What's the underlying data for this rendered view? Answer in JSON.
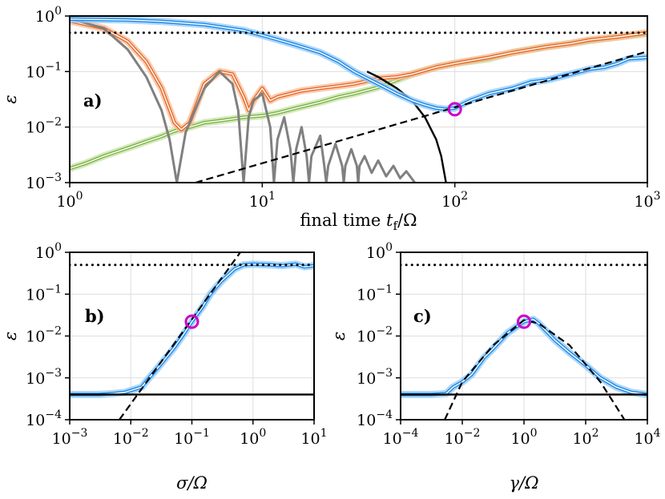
{
  "colors": {
    "blue": "#1E88E5",
    "blue_band": "#90CAF9",
    "orange": "#E8682A",
    "orange_band": "#F8B990",
    "green": "#7CB342",
    "green_band": "#C5E1A5",
    "gray": "#808080",
    "black": "#000000",
    "magenta": "#CC00CC",
    "grid": "#DDDDDD"
  },
  "chart_data": [
    {
      "id": "a",
      "type": "line",
      "panel_label": "a)",
      "xscale": "log",
      "yscale": "log",
      "xlim": [
        1,
        1000
      ],
      "ylim": [
        0.001,
        1
      ],
      "xticks": [
        {
          "v": 1,
          "exp": "0"
        },
        {
          "v": 10,
          "exp": "1"
        },
        {
          "v": 100,
          "exp": "2"
        },
        {
          "v": 1000,
          "exp": "3"
        }
      ],
      "yticks": [
        {
          "v": 0.001,
          "exp": "−3"
        },
        {
          "v": 0.01,
          "exp": "−2"
        },
        {
          "v": 0.1,
          "exp": "−1"
        },
        {
          "v": 1,
          "exp": "0"
        }
      ],
      "xlabel": "final time t_f/Ω",
      "xlabel_pre": "final time ",
      "xlabel_var": "t",
      "xlabel_sub": "f",
      "xlabel_post": "/Ω",
      "ylabel": "ε",
      "series": [
        {
          "name": "green-noisy",
          "style": "band",
          "color_key": "green",
          "points": [
            [
              1,
              0.0018
            ],
            [
              1.2,
              0.0022
            ],
            [
              1.5,
              0.003
            ],
            [
              2,
              0.0042
            ],
            [
              2.5,
              0.0055
            ],
            [
              3,
              0.0068
            ],
            [
              3.5,
              0.0085
            ],
            [
              4,
              0.0095
            ],
            [
              5,
              0.012
            ],
            [
              6,
              0.013
            ],
            [
              7,
              0.014
            ],
            [
              8,
              0.015
            ],
            [
              10,
              0.016
            ],
            [
              12,
              0.018
            ],
            [
              15,
              0.022
            ],
            [
              20,
              0.028
            ],
            [
              25,
              0.035
            ],
            [
              30,
              0.04
            ],
            [
              40,
              0.052
            ],
            [
              50,
              0.07
            ],
            [
              60,
              0.09
            ],
            [
              80,
              0.12
            ],
            [
              100,
              0.14
            ],
            [
              150,
              0.17
            ],
            [
              200,
              0.22
            ],
            [
              300,
              0.28
            ],
            [
              400,
              0.32
            ],
            [
              500,
              0.36
            ],
            [
              700,
              0.42
            ],
            [
              1000,
              0.48
            ]
          ]
        },
        {
          "name": "orange",
          "style": "band",
          "color_key": "orange",
          "points": [
            [
              1,
              0.82
            ],
            [
              1.5,
              0.6
            ],
            [
              2,
              0.35
            ],
            [
              2.5,
              0.15
            ],
            [
              3,
              0.05
            ],
            [
              3.5,
              0.012
            ],
            [
              3.8,
              0.009
            ],
            [
              4.2,
              0.012
            ],
            [
              5,
              0.06
            ],
            [
              6,
              0.1
            ],
            [
              7,
              0.09
            ],
            [
              8,
              0.035
            ],
            [
              8.5,
              0.02
            ],
            [
              9,
              0.03
            ],
            [
              10,
              0.05
            ],
            [
              11,
              0.03
            ],
            [
              12,
              0.035
            ],
            [
              14,
              0.04
            ],
            [
              16,
              0.045
            ],
            [
              20,
              0.05
            ],
            [
              25,
              0.055
            ],
            [
              30,
              0.06
            ],
            [
              40,
              0.075
            ],
            [
              50,
              0.08
            ],
            [
              60,
              0.09
            ],
            [
              80,
              0.12
            ],
            [
              100,
              0.14
            ],
            [
              150,
              0.18
            ],
            [
              200,
              0.22
            ],
            [
              300,
              0.28
            ],
            [
              400,
              0.32
            ],
            [
              500,
              0.37
            ],
            [
              700,
              0.42
            ],
            [
              1000,
              0.5
            ]
          ]
        },
        {
          "name": "gray-oscillation",
          "style": "line",
          "color_key": "gray",
          "points": [
            [
              1,
              0.9
            ],
            [
              1.5,
              0.6
            ],
            [
              2,
              0.25
            ],
            [
              2.5,
              0.08
            ],
            [
              3,
              0.02
            ],
            [
              3.3,
              0.006
            ],
            [
              3.6,
              0.001
            ],
            [
              4,
              0.008
            ],
            [
              5,
              0.05
            ],
            [
              6,
              0.1
            ],
            [
              7,
              0.06
            ],
            [
              7.5,
              0.02
            ],
            [
              8,
              0.001
            ],
            [
              8.5,
              0.015
            ],
            [
              9,
              0.03
            ],
            [
              10,
              0.04
            ],
            [
              11,
              0.01
            ],
            [
              11.5,
              0.001
            ],
            [
              12,
              0.006
            ],
            [
              13,
              0.015
            ],
            [
              14,
              0.004
            ],
            [
              14.5,
              0.001
            ],
            [
              15,
              0.004
            ],
            [
              16,
              0.01
            ],
            [
              17,
              0.003
            ],
            [
              17.5,
              0.001
            ],
            [
              18,
              0.003
            ],
            [
              20,
              0.007
            ],
            [
              21,
              0.002
            ],
            [
              21.5,
              0.001
            ],
            [
              22,
              0.002
            ],
            [
              24,
              0.005
            ],
            [
              26,
              0.002
            ],
            [
              26.5,
              0.001
            ],
            [
              27,
              0.002
            ],
            [
              29,
              0.004
            ],
            [
              31,
              0.002
            ],
            [
              31.5,
              0.001
            ],
            [
              32,
              0.002
            ],
            [
              34,
              0.003
            ],
            [
              37,
              0.0015
            ],
            [
              40,
              0.0025
            ],
            [
              44,
              0.0013
            ],
            [
              48,
              0.002
            ],
            [
              52,
              0.0012
            ],
            [
              56,
              0.0016
            ],
            [
              62,
              0.001
            ]
          ]
        },
        {
          "name": "black-decay",
          "style": "line",
          "color_key": "black",
          "points": [
            [
              35,
              0.1
            ],
            [
              40,
              0.08
            ],
            [
              50,
              0.05
            ],
            [
              60,
              0.03
            ],
            [
              70,
              0.015
            ],
            [
              80,
              0.006
            ],
            [
              85,
              0.003
            ],
            [
              90,
              0.001
            ]
          ]
        },
        {
          "name": "blue",
          "style": "band",
          "color_key": "blue",
          "points": [
            [
              1,
              0.88
            ],
            [
              2,
              0.85
            ],
            [
              3,
              0.8
            ],
            [
              5,
              0.7
            ],
            [
              8,
              0.55
            ],
            [
              10,
              0.45
            ],
            [
              15,
              0.3
            ],
            [
              20,
              0.22
            ],
            [
              25,
              0.15
            ],
            [
              30,
              0.1
            ],
            [
              40,
              0.06
            ],
            [
              50,
              0.04
            ],
            [
              60,
              0.03
            ],
            [
              70,
              0.025
            ],
            [
              80,
              0.022
            ],
            [
              90,
              0.021
            ],
            [
              100,
              0.022
            ],
            [
              120,
              0.03
            ],
            [
              150,
              0.04
            ],
            [
              200,
              0.05
            ],
            [
              250,
              0.065
            ],
            [
              300,
              0.07
            ],
            [
              400,
              0.09
            ],
            [
              500,
              0.11
            ],
            [
              600,
              0.12
            ],
            [
              700,
              0.14
            ],
            [
              800,
              0.17
            ],
            [
              1000,
              0.18
            ]
          ]
        },
        {
          "name": "dashed-fit",
          "style": "dashed",
          "color_key": "black",
          "points": [
            [
              4.5,
              0.001
            ],
            [
              1000,
              0.23
            ]
          ]
        },
        {
          "name": "dotted-level",
          "style": "dotted",
          "color_key": "black",
          "points": [
            [
              1,
              0.5
            ],
            [
              1000,
              0.5
            ]
          ]
        }
      ],
      "marker": {
        "x": 100,
        "y": 0.021,
        "color_key": "magenta"
      }
    },
    {
      "id": "b",
      "type": "line",
      "panel_label": "b)",
      "xscale": "log",
      "yscale": "log",
      "xlim": [
        0.001,
        10
      ],
      "ylim": [
        0.0001,
        1
      ],
      "xticks": [
        {
          "v": 0.001,
          "exp": "−3"
        },
        {
          "v": 0.01,
          "exp": "−2"
        },
        {
          "v": 0.1,
          "exp": "−1"
        },
        {
          "v": 1,
          "exp": "0"
        },
        {
          "v": 10,
          "exp": "1"
        }
      ],
      "yticks": [
        {
          "v": 0.0001,
          "exp": "−4"
        },
        {
          "v": 0.001,
          "exp": "−3"
        },
        {
          "v": 0.01,
          "exp": "−2"
        },
        {
          "v": 0.1,
          "exp": "−1"
        },
        {
          "v": 1,
          "exp": "0"
        }
      ],
      "xlabel": "σ/Ω",
      "ylabel": "ε",
      "series": [
        {
          "name": "blue",
          "style": "band",
          "color_key": "blue",
          "points": [
            [
              0.001,
              0.0004
            ],
            [
              0.003,
              0.0004
            ],
            [
              0.005,
              0.00042
            ],
            [
              0.008,
              0.00045
            ],
            [
              0.01,
              0.0005
            ],
            [
              0.015,
              0.0006
            ],
            [
              0.02,
              0.001
            ],
            [
              0.03,
              0.002
            ],
            [
              0.05,
              0.005
            ],
            [
              0.07,
              0.01
            ],
            [
              0.1,
              0.022
            ],
            [
              0.15,
              0.05
            ],
            [
              0.2,
              0.1
            ],
            [
              0.3,
              0.2
            ],
            [
              0.5,
              0.4
            ],
            [
              0.7,
              0.5
            ],
            [
              1,
              0.52
            ],
            [
              2,
              0.5
            ],
            [
              3,
              0.48
            ],
            [
              5,
              0.52
            ],
            [
              7,
              0.45
            ],
            [
              10,
              0.48
            ]
          ]
        },
        {
          "name": "dashed-fit",
          "style": "dashed",
          "color_key": "black",
          "points": [
            [
              0.0065,
              0.0001
            ],
            [
              0.62,
              1
            ]
          ]
        },
        {
          "name": "solid-floor",
          "style": "line",
          "color_key": "black",
          "points": [
            [
              0.001,
              0.0004
            ],
            [
              10,
              0.0004
            ]
          ]
        },
        {
          "name": "dotted-level",
          "style": "dotted",
          "color_key": "black",
          "points": [
            [
              0.001,
              0.5
            ],
            [
              10,
              0.5
            ]
          ]
        }
      ],
      "marker": {
        "x": 0.1,
        "y": 0.022,
        "color_key": "magenta"
      }
    },
    {
      "id": "c",
      "type": "line",
      "panel_label": "c)",
      "xscale": "log",
      "yscale": "log",
      "xlim": [
        0.0001,
        10000
      ],
      "ylim": [
        0.0001,
        1
      ],
      "xticks": [
        {
          "v": 0.0001,
          "exp": "−4"
        },
        {
          "v": 0.01,
          "exp": "−2"
        },
        {
          "v": 1,
          "exp": "0"
        },
        {
          "v": 100,
          "exp": "2"
        },
        {
          "v": 10000,
          "exp": "4"
        }
      ],
      "yticks": [
        {
          "v": 0.0001,
          "exp": "−4"
        },
        {
          "v": 0.001,
          "exp": "−3"
        },
        {
          "v": 0.01,
          "exp": "−2"
        },
        {
          "v": 0.1,
          "exp": "−1"
        },
        {
          "v": 1,
          "exp": "0"
        }
      ],
      "xlabel": "γ/Ω",
      "ylabel": "ε",
      "series": [
        {
          "name": "blue",
          "style": "band",
          "color_key": "blue",
          "points": [
            [
              0.0001,
              0.0004
            ],
            [
              0.001,
              0.0004
            ],
            [
              0.003,
              0.00042
            ],
            [
              0.005,
              0.0006
            ],
            [
              0.01,
              0.0008
            ],
            [
              0.02,
              0.0012
            ],
            [
              0.05,
              0.003
            ],
            [
              0.1,
              0.005
            ],
            [
              0.3,
              0.012
            ],
            [
              1,
              0.022
            ],
            [
              2,
              0.025
            ],
            [
              3,
              0.02
            ],
            [
              10,
              0.008
            ],
            [
              30,
              0.004
            ],
            [
              100,
              0.002
            ],
            [
              300,
              0.001
            ],
            [
              1000,
              0.0006
            ],
            [
              3000,
              0.00045
            ],
            [
              10000,
              0.0004
            ]
          ]
        },
        {
          "name": "dashed-fit",
          "style": "dashed",
          "color_key": "black",
          "points": [
            [
              0.0027,
              0.0001
            ],
            [
              0.01,
              0.0008
            ],
            [
              0.1,
              0.006
            ],
            [
              1,
              0.024
            ],
            [
              3,
              0.02
            ],
            [
              30,
              0.006
            ],
            [
              300,
              0.0008
            ],
            [
              1000,
              0.0002
            ],
            [
              1800,
              0.0001
            ]
          ]
        },
        {
          "name": "solid-floor",
          "style": "line",
          "color_key": "black",
          "points": [
            [
              0.0001,
              0.0004
            ],
            [
              10000,
              0.0004
            ]
          ]
        },
        {
          "name": "dotted-level",
          "style": "dotted",
          "color_key": "black",
          "points": [
            [
              0.0001,
              0.5
            ],
            [
              10000,
              0.5
            ]
          ]
        }
      ],
      "marker": {
        "x": 1,
        "y": 0.022,
        "color_key": "magenta"
      }
    }
  ]
}
